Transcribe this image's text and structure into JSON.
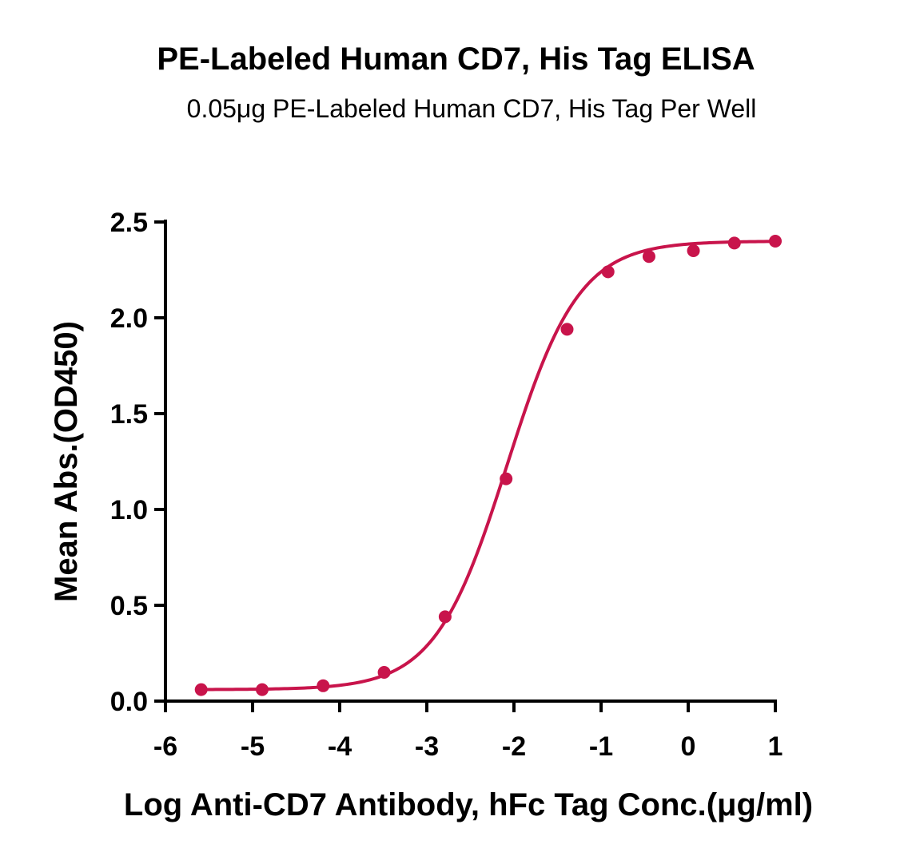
{
  "chart_data": {
    "type": "scatter",
    "title": "PE-Labeled Human CD7, His Tag ELISA",
    "subtitle": "0.05μg PE-Labeled Human CD7, His Tag Per Well",
    "xlabel": "Log Anti-CD7 Antibody, hFc Tag Conc.(μg/ml)",
    "ylabel": "Mean Abs.(OD450)",
    "xlim": [
      -6,
      1
    ],
    "ylim": [
      0,
      2.5
    ],
    "xticks": [
      "-6",
      "-5",
      "-4",
      "-3",
      "-2",
      "-1",
      "0",
      "1"
    ],
    "yticks": [
      "0.0",
      "0.5",
      "1.0",
      "1.5",
      "2.0",
      "2.5"
    ],
    "grid": false,
    "legend": "none",
    "series": [
      {
        "color": "#C8144B",
        "x": [
          -5.59,
          -4.89,
          -4.19,
          -3.49,
          -2.79,
          -2.09,
          -1.39,
          -0.92,
          -0.45,
          0.06,
          0.53,
          1.0
        ],
        "y": [
          0.06,
          0.06,
          0.08,
          0.15,
          0.44,
          1.16,
          1.94,
          2.24,
          2.32,
          2.35,
          2.39,
          2.4
        ],
        "fit": "4PL sigmoid"
      }
    ]
  }
}
